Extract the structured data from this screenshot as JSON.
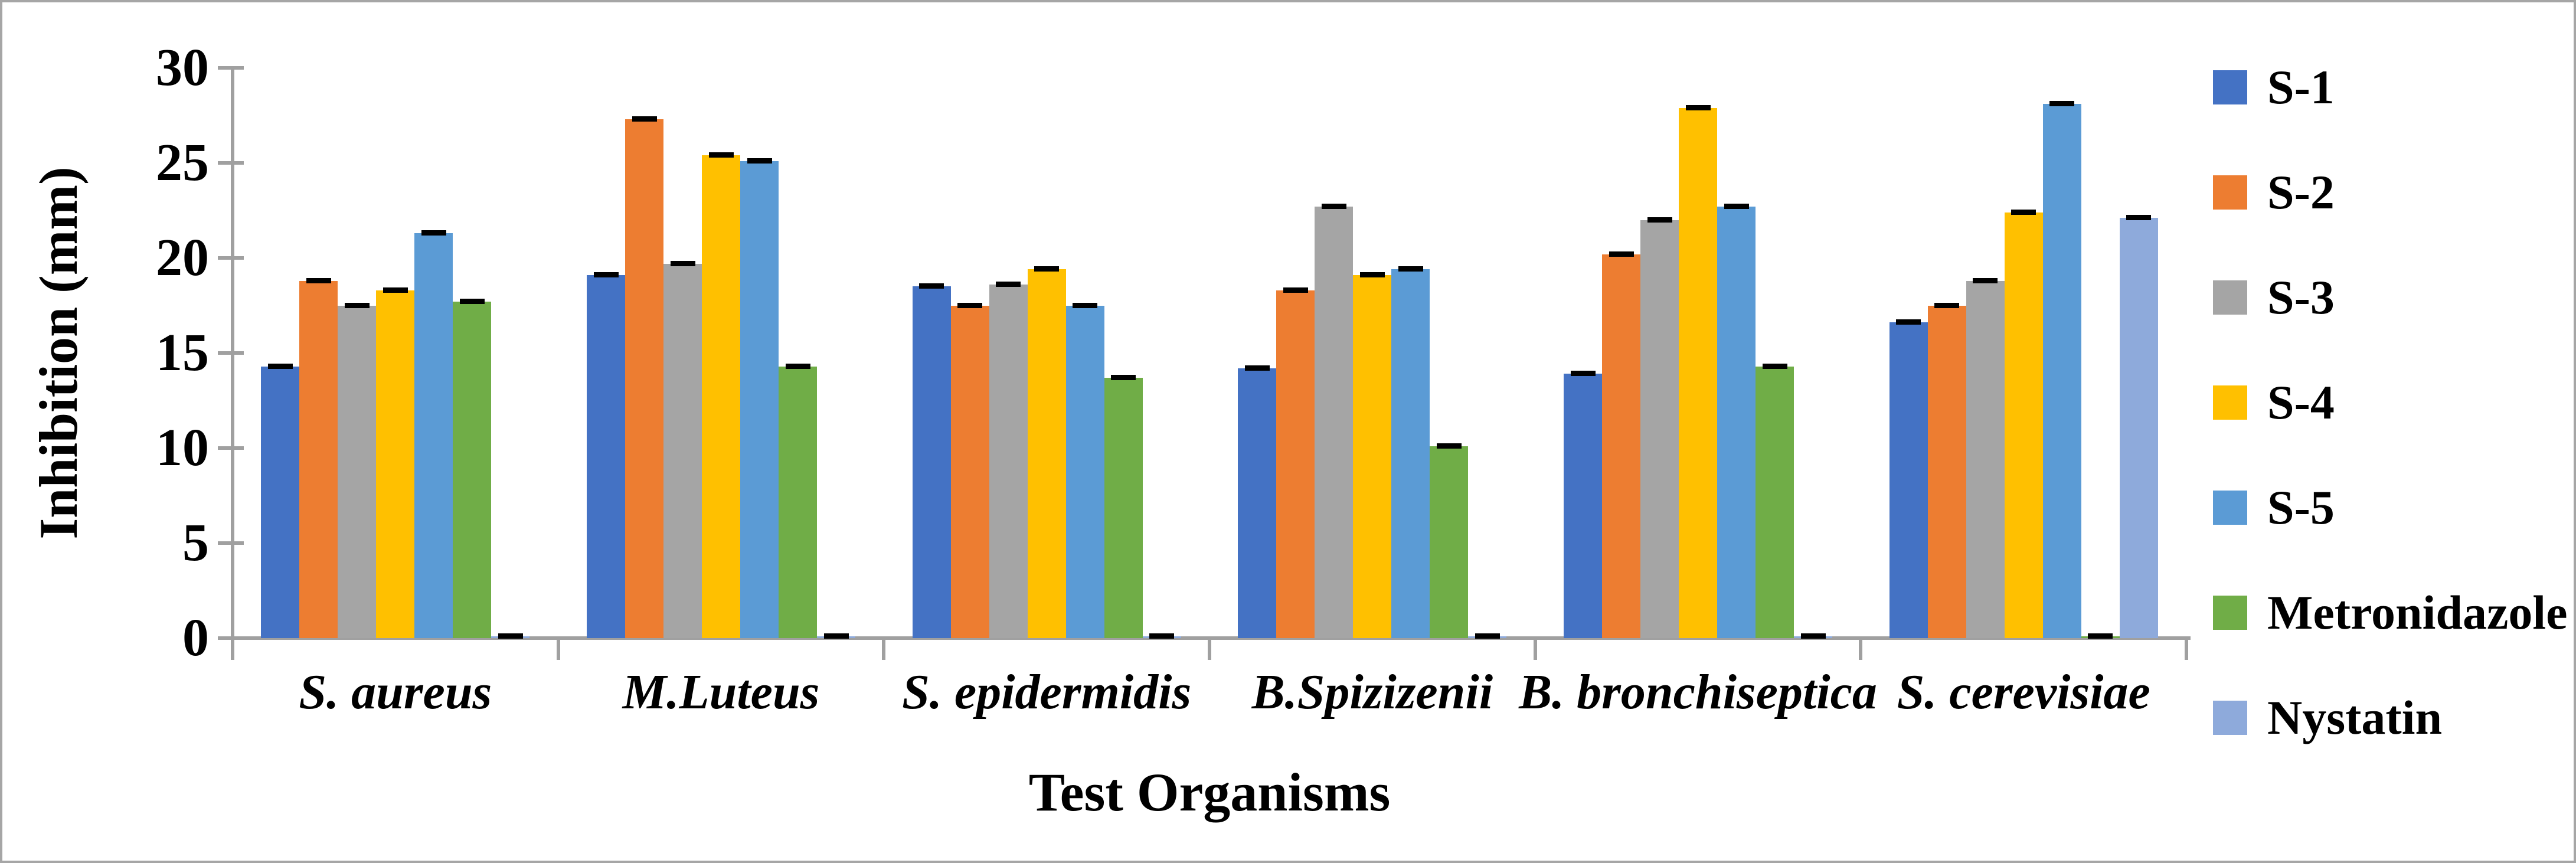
{
  "figure": {
    "background_color": "#ffffff",
    "border_color": "#a6a6a6",
    "axis_color": "#a0a0a0",
    "error_bar_color": "#000000"
  },
  "chart_data": {
    "type": "bar",
    "title": "",
    "xlabel": "Test Organisms",
    "ylabel": "Inhibition (mm)",
    "ylim": [
      0,
      30
    ],
    "yticks": [
      0,
      5,
      10,
      15,
      20,
      25,
      30
    ],
    "grid": false,
    "legend_position": "right",
    "error_bars": true,
    "categories": [
      "S. aureus",
      "M.Luteus",
      "S. epidermidis",
      "B.Spizizenii",
      "B. bronchiseptica",
      "S. cerevisiae"
    ],
    "series": [
      {
        "name": "S-1",
        "color": "#4472C4",
        "values": [
          14.3,
          19.1,
          18.5,
          14.2,
          13.9,
          16.6
        ]
      },
      {
        "name": "S-2",
        "color": "#ED7D31",
        "values": [
          18.8,
          27.3,
          17.5,
          18.3,
          20.2,
          17.5
        ]
      },
      {
        "name": "S-3",
        "color": "#A5A5A5",
        "values": [
          17.5,
          19.7,
          18.6,
          22.7,
          22.0,
          18.8
        ]
      },
      {
        "name": "S-4",
        "color": "#FFC000",
        "values": [
          18.3,
          25.4,
          19.4,
          19.1,
          27.9,
          22.4
        ]
      },
      {
        "name": "S-5",
        "color": "#5B9BD5",
        "values": [
          21.3,
          25.1,
          17.5,
          19.4,
          22.7,
          28.1
        ]
      },
      {
        "name": "Metronidazole",
        "color": "#70AD47",
        "values": [
          17.7,
          14.3,
          13.7,
          10.1,
          14.3,
          0.1
        ]
      },
      {
        "name": "Nystatin",
        "color": "#8EAADB",
        "values": [
          0.1,
          0.1,
          0.1,
          0.1,
          0.1,
          22.1
        ]
      }
    ]
  }
}
